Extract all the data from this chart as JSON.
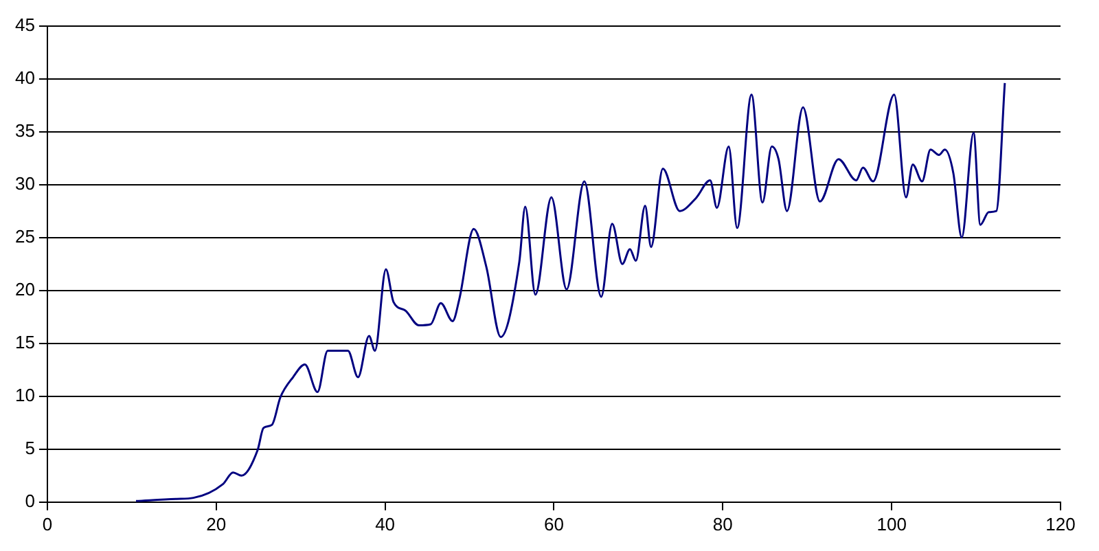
{
  "chart_data": {
    "type": "line",
    "x": [
      10.5,
      15.3,
      17.3,
      20.8,
      22,
      23,
      24.9,
      25.6,
      26.6,
      27.6,
      29.1,
      30.5,
      32,
      33.2,
      35.6,
      36.8,
      38.1,
      38.8,
      40.1,
      41,
      42.4,
      44,
      45.4,
      46.6,
      48,
      48.8,
      50.5,
      52,
      53.7,
      55.9,
      56.6,
      57.8,
      59.7,
      61.5,
      63.6,
      65.6,
      66.9,
      68.1,
      69,
      69.7,
      70.8,
      71.5,
      72.9,
      74.9,
      76.8,
      78.5,
      79.3,
      80.7,
      81.7,
      83.4,
      84.7,
      85.8,
      86.6,
      87.6,
      89.5,
      91.5,
      93.7,
      95.8,
      96.6,
      97.8,
      100.3,
      101.7,
      102.5,
      103.6,
      104.6,
      105.6,
      106.3,
      107.3,
      108.3,
      109.7,
      110.5,
      111.5,
      112.4,
      113.4
    ],
    "series": [
      {
        "color": "#000080",
        "values": [
          0.1,
          0.3,
          0.4,
          1.7,
          2.8,
          2.5,
          4.9,
          7,
          7.3,
          9.9,
          11.8,
          13,
          10.4,
          14.3,
          14.3,
          11.8,
          15.7,
          14.3,
          22,
          18.9,
          18.1,
          16.7,
          16.8,
          18.8,
          17.1,
          19.2,
          25.8,
          22.2,
          15.6,
          22.7,
          27.9,
          19.6,
          28.8,
          20.1,
          30.3,
          19.4,
          26.3,
          22.5,
          23.9,
          22.8,
          28,
          24.1,
          31.5,
          27.5,
          28.7,
          30.4,
          27.8,
          33.6,
          25.9,
          38.5,
          28.3,
          33.6,
          32.4,
          27.5,
          37.3,
          28.4,
          32.4,
          30.4,
          31.6,
          30.3,
          38.5,
          28.8,
          31.9,
          30.3,
          33.3,
          32.8,
          33.3,
          31.1,
          25,
          34.9,
          26.2,
          27.4,
          27.5,
          39.6
        ]
      }
    ],
    "xlim": [
      0,
      120
    ],
    "xticks": [
      0,
      20,
      40,
      60,
      80,
      100,
      120
    ],
    "ylim": [
      0,
      45
    ],
    "yticks": [
      0,
      5,
      10,
      15,
      20,
      25,
      30,
      35,
      40,
      45
    ],
    "grid": "y",
    "legend": false,
    "marker": "none",
    "line_style": "solid"
  }
}
